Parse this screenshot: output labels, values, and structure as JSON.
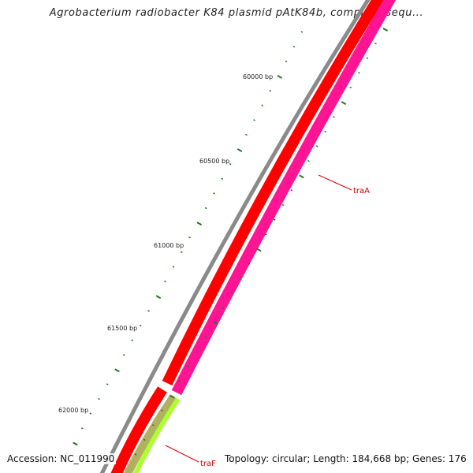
{
  "title": "Agrobacterium radiobacter K84 plasmid pAtK84b, complete sequ...",
  "footer": {
    "accession": "Accession: NC_011990",
    "summary": "Topology: circular; Length: 184,668 bp; Genes: 176"
  },
  "ruler_labels": [
    "60000 bp",
    "60500 bp",
    "61000 bp",
    "61500 bp",
    "62000 bp"
  ],
  "gene_labels": [
    "traA",
    "traF"
  ],
  "colors": {
    "backbone": "#8a8a8a",
    "gene_forward": "#ff0000",
    "gene_reverse": "#ff1493",
    "gene_other": "#adff2f",
    "tick_major": "#1f7a1f",
    "label_line": "#e00000"
  }
}
